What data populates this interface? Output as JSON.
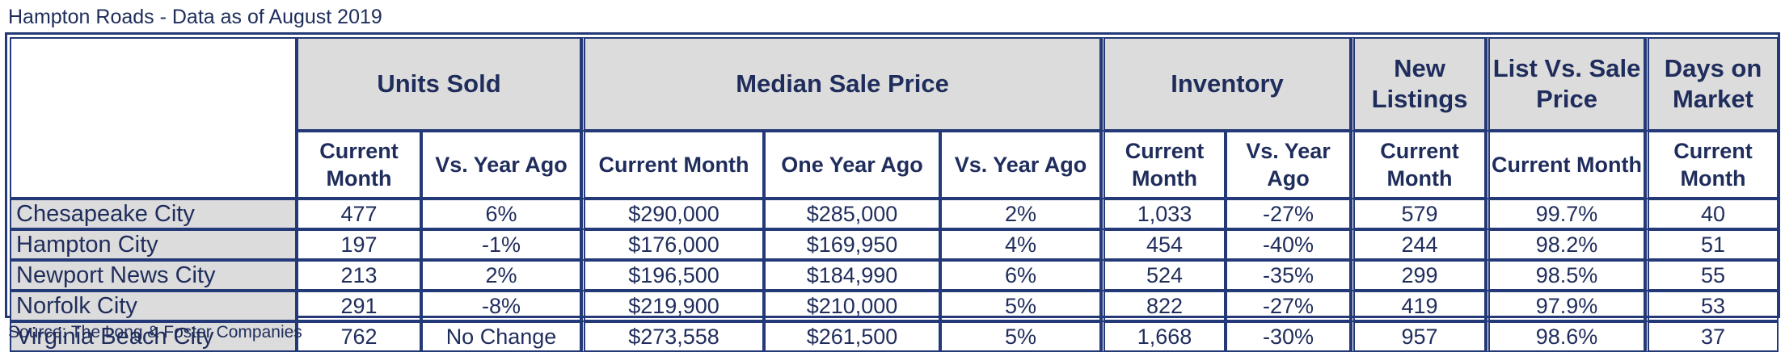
{
  "title": "Hampton Roads - Data as of August 2019",
  "source": "Source: The Long & Foster Companies",
  "groups": {
    "units_sold": "Units Sold",
    "median_sale_price": "Median Sale Price",
    "inventory": "Inventory",
    "new_listings": "New Listings",
    "list_vs_sale": "List Vs. Sale Price",
    "days_on_market": "Days on Market"
  },
  "subheaders": {
    "units_current": "Current Month",
    "units_vs": "Vs. Year Ago",
    "price_current": "Current Month",
    "price_year_ago": "One Year Ago",
    "price_vs": "Vs. Year Ago",
    "inv_current": "Current Month",
    "inv_vs": "Vs. Year Ago",
    "new_current": "Current Month",
    "list_current": "Current Month",
    "dom_current": "Current Month"
  },
  "rows": [
    {
      "city": "Chesapeake City",
      "units_current": "477",
      "units_vs": "6%",
      "price_current": "$290,000",
      "price_year_ago": "$285,000",
      "price_vs": "2%",
      "inv_current": "1,033",
      "inv_vs": "-27%",
      "new_listings": "579",
      "list_vs_sale": "99.7%",
      "dom": "40"
    },
    {
      "city": "Hampton City",
      "units_current": "197",
      "units_vs": "-1%",
      "price_current": "$176,000",
      "price_year_ago": "$169,950",
      "price_vs": "4%",
      "inv_current": "454",
      "inv_vs": "-40%",
      "new_listings": "244",
      "list_vs_sale": "98.2%",
      "dom": "51"
    },
    {
      "city": "Newport News City",
      "units_current": "213",
      "units_vs": "2%",
      "price_current": "$196,500",
      "price_year_ago": "$184,990",
      "price_vs": "6%",
      "inv_current": "524",
      "inv_vs": "-35%",
      "new_listings": "299",
      "list_vs_sale": "98.5%",
      "dom": "55"
    },
    {
      "city": "Norfolk City",
      "units_current": "291",
      "units_vs": "-8%",
      "price_current": "$219,900",
      "price_year_ago": "$210,000",
      "price_vs": "5%",
      "inv_current": "822",
      "inv_vs": "-27%",
      "new_listings": "419",
      "list_vs_sale": "97.9%",
      "dom": "53"
    },
    {
      "city": "Virginia Beach City",
      "units_current": "762",
      "units_vs": "No Change",
      "price_current": "$273,558",
      "price_year_ago": "$261,500",
      "price_vs": "5%",
      "inv_current": "1,668",
      "inv_vs": "-30%",
      "new_listings": "957",
      "list_vs_sale": "98.6%",
      "dom": "37"
    }
  ],
  "colors": {
    "border": "#243a78",
    "text": "#1f2d5c",
    "header_fill": "#dcdcdc"
  }
}
